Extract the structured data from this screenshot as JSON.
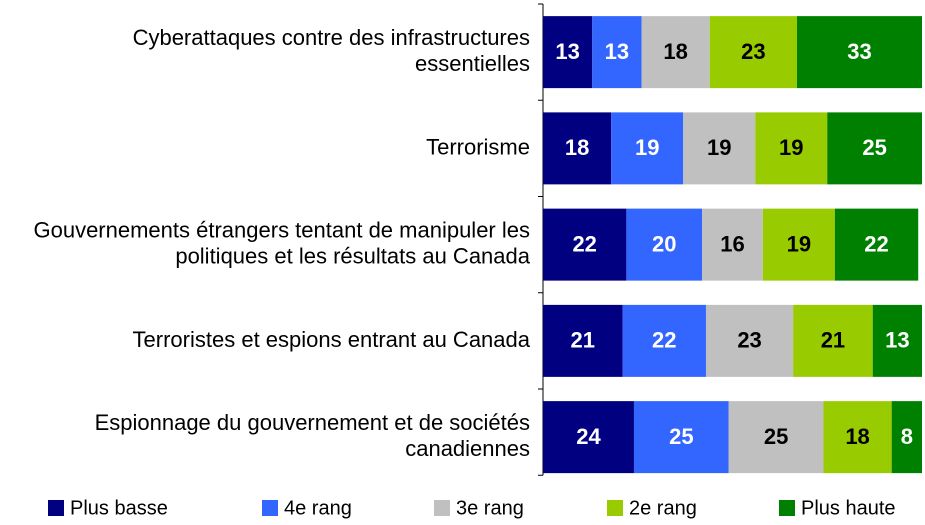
{
  "chart_data": {
    "type": "stacked-bar-horizontal",
    "categories": [
      "Cyberattaques contre des infrastructures essentielles",
      "Terrorisme",
      "Gouvernements étrangers tentant de manipuler les politiques et les résultats au Canada",
      "Terroristes et espions entrant au Canada",
      "Espionnage du gouvernement et de sociétés canadiennes"
    ],
    "series": [
      {
        "name": "Plus basse",
        "color": "#000080",
        "values": [
          13,
          18,
          22,
          21,
          24
        ]
      },
      {
        "name": "4e rang",
        "color": "#3366ff",
        "values": [
          13,
          19,
          20,
          22,
          25
        ]
      },
      {
        "name": "3e rang",
        "color": "#c0c0c0",
        "values": [
          18,
          19,
          16,
          23,
          25
        ]
      },
      {
        "name": "2e rang",
        "color": "#99cc00",
        "values": [
          23,
          19,
          19,
          21,
          18
        ]
      },
      {
        "name": "Plus haute",
        "color": "#008000",
        "values": [
          33,
          25,
          22,
          13,
          8
        ]
      }
    ],
    "xlim": [
      0,
      100
    ]
  }
}
